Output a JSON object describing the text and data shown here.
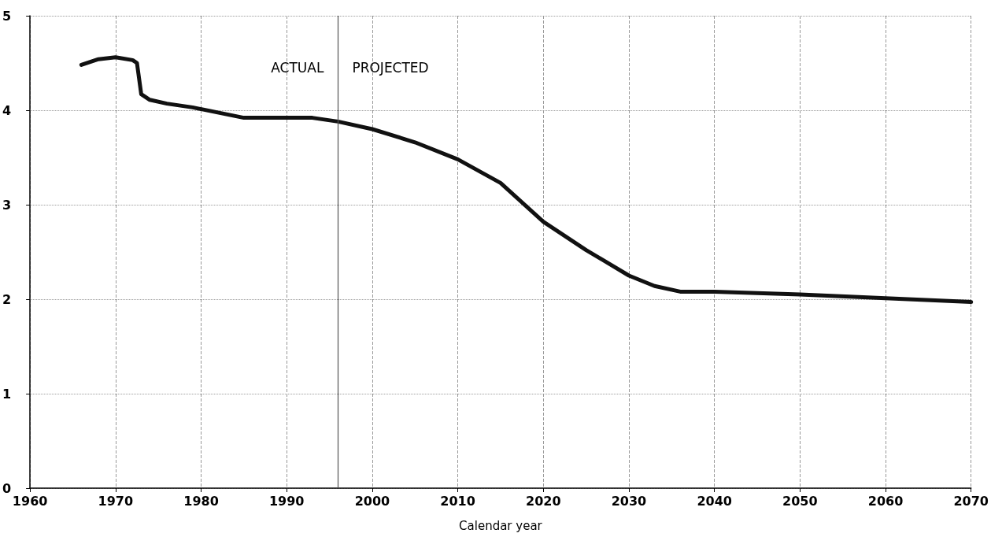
{
  "chart_data": {
    "type": "line",
    "xlabel": "Calendar year",
    "x": [
      1966,
      1968,
      1970,
      1972,
      1972.5,
      1973,
      1974,
      1976,
      1979,
      1985,
      1990,
      1993,
      1996,
      2000,
      2005,
      2010,
      2015,
      2020,
      2025,
      2030,
      2033,
      2036,
      2040,
      2050,
      2060,
      2070
    ],
    "series": [
      {
        "color": "#111111",
        "values": [
          4.48,
          4.54,
          4.56,
          4.53,
          4.5,
          4.17,
          4.11,
          4.07,
          4.03,
          3.92,
          3.92,
          3.92,
          3.88,
          3.8,
          3.66,
          3.48,
          3.23,
          2.82,
          2.52,
          2.25,
          2.14,
          2.08,
          2.08,
          2.05,
          2.01,
          1.97
        ]
      }
    ],
    "xlim": [
      1960,
      2070
    ],
    "xticks": [
      1960,
      1970,
      1980,
      1990,
      2000,
      2010,
      2020,
      2030,
      2040,
      2050,
      2060,
      2070
    ],
    "ylim": [
      0,
      5
    ],
    "yticks": [
      0,
      1,
      2,
      3,
      4,
      5
    ],
    "grid": true,
    "marker": "none",
    "line_style": "solid",
    "ref_lines": [
      {
        "axis": "x",
        "value": 1996,
        "color": "#555555",
        "line_style": "solid"
      }
    ],
    "annotations": [
      "ACTUAL",
      "PROJECTED"
    ]
  }
}
